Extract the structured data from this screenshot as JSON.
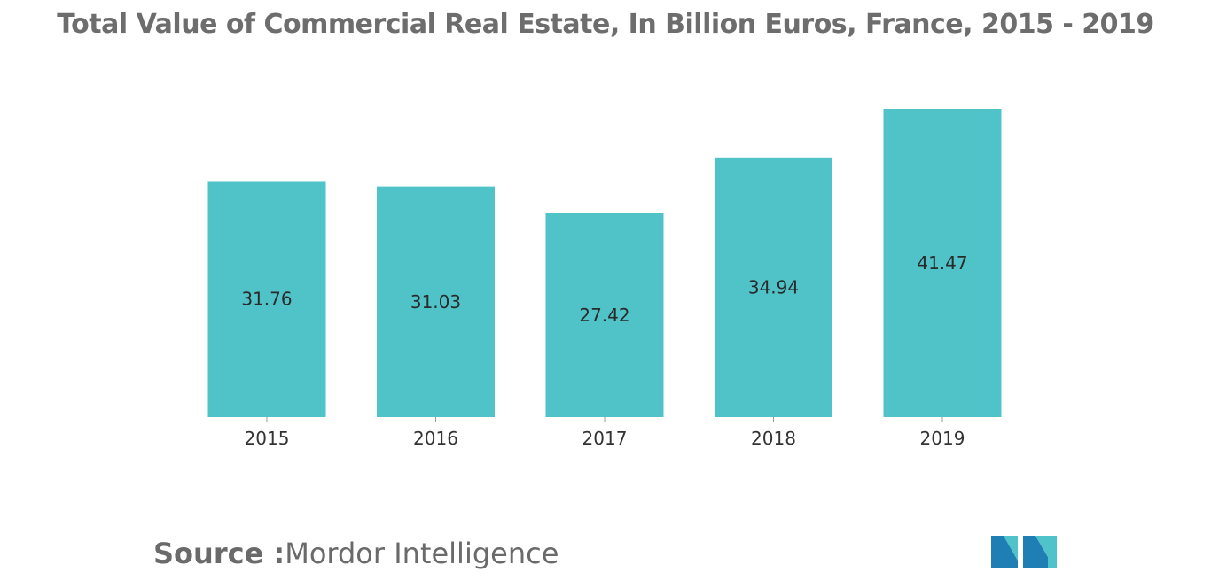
{
  "chart_data": {
    "type": "bar",
    "title": "Total Value of Commercial Real Estate, In Billion Euros, France, 2015 - 2019",
    "categories": [
      "2015",
      "2016",
      "2017",
      "2018",
      "2019"
    ],
    "values": [
      31.76,
      31.03,
      27.42,
      34.94,
      41.47
    ],
    "value_labels": [
      "31.76",
      "31.03",
      "27.42",
      "34.94",
      "41.47"
    ],
    "ylim": [
      0,
      41.47
    ],
    "grid": false,
    "legend": "none",
    "bar_color": "#50c3c9"
  },
  "footer": {
    "source_label": "Source :",
    "source_name": "Mordor Intelligence"
  },
  "logo": {
    "icon": "mordor-intelligence-logo",
    "colors": [
      "#1f7fb5",
      "#4fc3c9"
    ]
  }
}
